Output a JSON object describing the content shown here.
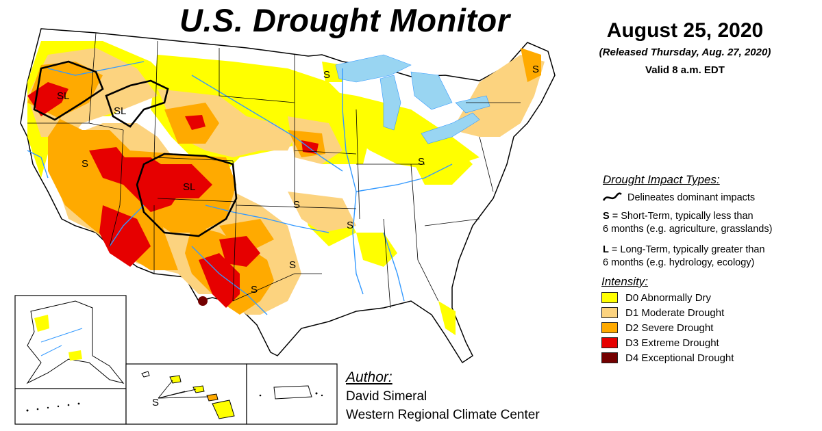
{
  "map": {
    "title": "U.S. Drought Monitor",
    "date": "August 25, 2020",
    "released": "(Released Thursday, Aug. 27, 2020)",
    "valid": "Valid 8 a.m. EDT",
    "region_labels": [
      "SL",
      "SL",
      "S",
      "SL",
      "S",
      "S",
      "S",
      "S",
      "S",
      "S",
      "S"
    ],
    "inset_labels": {
      "hawaii": "S"
    }
  },
  "legend": {
    "impact_heading": "Drought Impact Types:",
    "delineates": "Delineates dominant impacts",
    "short_term_letter": "S",
    "short_term_line1": " = Short-Term, typically less than",
    "short_term_line2": "6 months (e.g. agriculture, grasslands)",
    "long_term_letter": "L",
    "long_term_line1": " = Long-Term, typically greater than",
    "long_term_line2": "6 months (e.g. hydrology, ecology)",
    "intensity_heading": "Intensity:",
    "intensity": [
      {
        "label": "D0 Abnormally Dry",
        "color": "#FFFF00"
      },
      {
        "label": "D1 Moderate Drought",
        "color": "#FCD37F"
      },
      {
        "label": "D2 Severe Drought",
        "color": "#FFAA00"
      },
      {
        "label": "D3 Extreme Drought",
        "color": "#E60000"
      },
      {
        "label": "D4 Exceptional Drought",
        "color": "#730000"
      }
    ]
  },
  "author": {
    "heading": "Author:",
    "name": "David Simeral",
    "org": "Western Regional Climate Center"
  },
  "colors": {
    "water": "#99D5F2",
    "rivers": "#3399FF",
    "boundaries": "#000000"
  }
}
